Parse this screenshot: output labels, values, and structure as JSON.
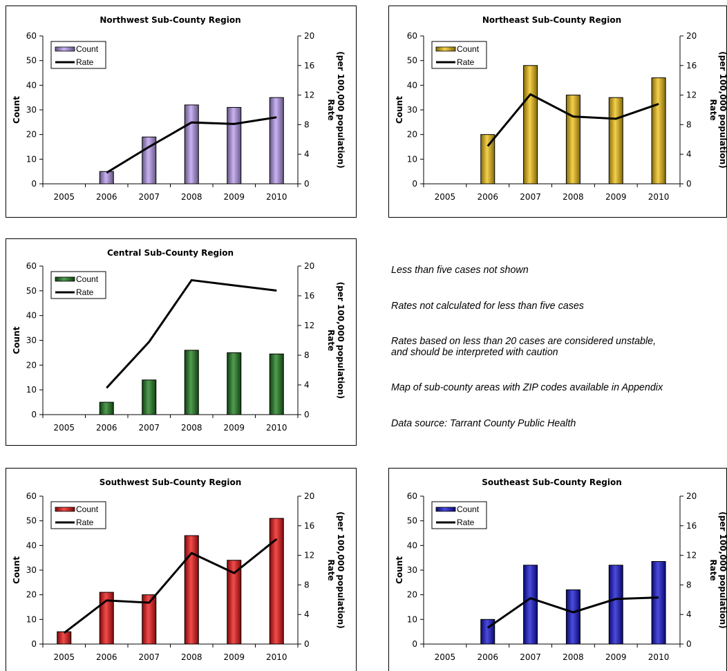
{
  "charts": [
    {
      "type": "bar",
      "title": "Northwest Sub-County Region",
      "categories": [
        "2005",
        "2006",
        "2007",
        "2008",
        "2009",
        "2010"
      ],
      "left_axis": {
        "label": "Count",
        "range": [
          0,
          60
        ],
        "ticks": [
          "0",
          "10",
          "20",
          "30",
          "40",
          "50",
          "60"
        ]
      },
      "right_axis": {
        "label_line1": "Rate",
        "label_line2": "(per 100,000 population)",
        "range": [
          0,
          20
        ],
        "ticks": [
          "0",
          "4",
          "8",
          "12",
          "16",
          "20"
        ]
      },
      "series": [
        {
          "name": "Count",
          "kind": "bar",
          "color": "#b79aee",
          "values": [
            null,
            5,
            19,
            32,
            31,
            35
          ]
        },
        {
          "name": "Rate",
          "kind": "line",
          "color": "#000000",
          "values": [
            null,
            1.5,
            5.0,
            8.3,
            8.1,
            9.0
          ]
        }
      ],
      "legend": "top-left"
    },
    {
      "type": "bar",
      "title": "Northeast Sub-County Region",
      "categories": [
        "2005",
        "2006",
        "2007",
        "2008",
        "2009",
        "2010"
      ],
      "left_axis": {
        "label": "Count",
        "range": [
          0,
          60
        ],
        "ticks": [
          "0",
          "10",
          "20",
          "30",
          "40",
          "50",
          "60"
        ]
      },
      "right_axis": {
        "label_line1": "Rate",
        "label_line2": "(per 100,000 population)",
        "range": [
          0,
          20
        ],
        "ticks": [
          "0",
          "4",
          "8",
          "12",
          "16",
          "20"
        ]
      },
      "series": [
        {
          "name": "Count",
          "kind": "bar",
          "color": "#f0c010",
          "values": [
            null,
            20,
            48,
            36,
            35,
            43
          ]
        },
        {
          "name": "Rate",
          "kind": "line",
          "color": "#000000",
          "values": [
            null,
            5.1,
            12.1,
            9.1,
            8.8,
            10.8
          ]
        }
      ],
      "legend": "top-left"
    },
    {
      "type": "bar",
      "title": "Central Sub-County Region",
      "categories": [
        "2005",
        "2006",
        "2007",
        "2008",
        "2009",
        "2010"
      ],
      "left_axis": {
        "label": "Count",
        "range": [
          0,
          60
        ],
        "ticks": [
          "0",
          "10",
          "20",
          "30",
          "40",
          "50",
          "60"
        ]
      },
      "right_axis": {
        "label_line1": "Rate",
        "label_line2": "(per 100,000 population)",
        "range": [
          0,
          20
        ],
        "ticks": [
          "0",
          "4",
          "8",
          "12",
          "16",
          "20"
        ]
      },
      "series": [
        {
          "name": "Count",
          "kind": "bar",
          "color": "#1a7a1a",
          "values": [
            null,
            5,
            14,
            26,
            25,
            24.5
          ]
        },
        {
          "name": "Rate",
          "kind": "line",
          "color": "#000000",
          "values": [
            null,
            3.6,
            9.8,
            18.1,
            17.4,
            16.7
          ]
        }
      ],
      "legend": "top-left"
    },
    {
      "type": "bar",
      "title": "Southwest Sub-County Region",
      "categories": [
        "2005",
        "2006",
        "2007",
        "2008",
        "2009",
        "2010"
      ],
      "left_axis": {
        "label": "Count",
        "range": [
          0,
          60
        ],
        "ticks": [
          "0",
          "10",
          "20",
          "30",
          "40",
          "50",
          "60"
        ]
      },
      "right_axis": {
        "label_line1": "Rate",
        "label_line2": "(per 100,000 population)",
        "range": [
          0,
          20
        ],
        "ticks": [
          "0",
          "4",
          "8",
          "12",
          "16",
          "20"
        ]
      },
      "series": [
        {
          "name": "Count",
          "kind": "bar",
          "color": "#ee1010",
          "values": [
            5,
            21,
            20,
            44,
            34,
            51
          ]
        },
        {
          "name": "Rate",
          "kind": "line",
          "color": "#000000",
          "values": [
            1.5,
            5.9,
            5.6,
            12.3,
            9.6,
            14.2
          ]
        }
      ],
      "legend": "top-left"
    },
    {
      "type": "bar",
      "title": "Southeast Sub-County Region",
      "categories": [
        "2005",
        "2006",
        "2007",
        "2008",
        "2009",
        "2010"
      ],
      "left_axis": {
        "label": "Count",
        "range": [
          0,
          60
        ],
        "ticks": [
          "0",
          "10",
          "20",
          "30",
          "40",
          "50",
          "60"
        ]
      },
      "right_axis": {
        "label_line1": "Rate",
        "label_line2": "(per 100,000 population)",
        "range": [
          0,
          20
        ],
        "ticks": [
          "0",
          "4",
          "8",
          "12",
          "16",
          "20"
        ]
      },
      "series": [
        {
          "name": "Count",
          "kind": "bar",
          "color": "#1010d0",
          "values": [
            null,
            10,
            32,
            22,
            32,
            33.5
          ]
        },
        {
          "name": "Rate",
          "kind": "line",
          "color": "#000000",
          "values": [
            null,
            2.2,
            6.2,
            4.3,
            6.1,
            6.3
          ]
        }
      ],
      "legend": "top-left"
    }
  ],
  "notes": [
    "Less than five cases not shown",
    "Rates not calculated for less than five cases",
    "Rates based on less than 20 cases are considered unstable,",
    "and should be interpreted with caution",
    "Map of sub-county areas with ZIP codes available in Appendix",
    "Data source: Tarrant County Public Health"
  ]
}
